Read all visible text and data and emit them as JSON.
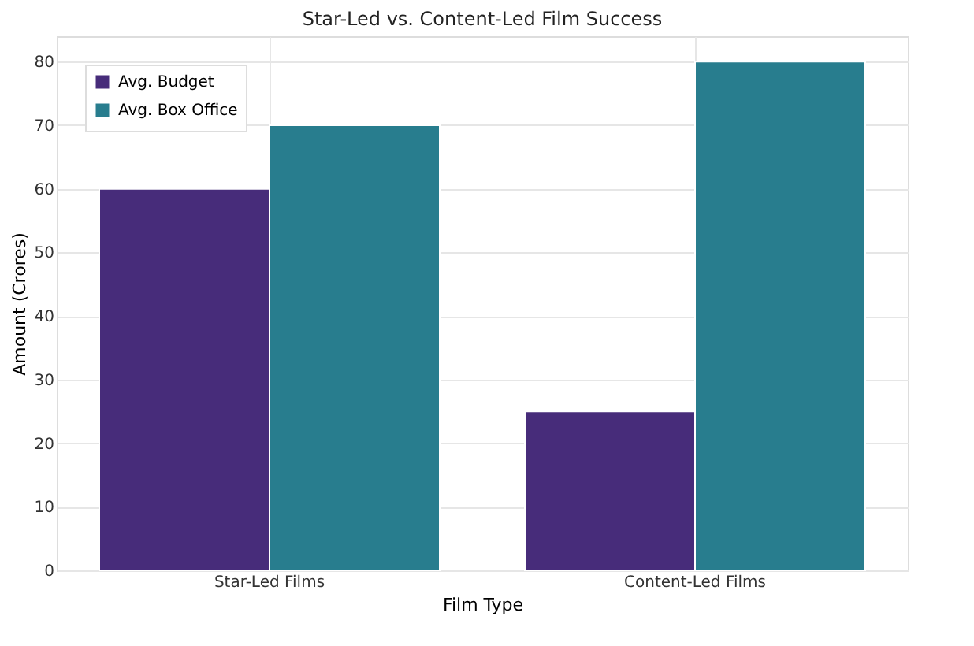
{
  "chart_data": {
    "type": "bar",
    "title": "Star-Led vs. Content-Led Film Success",
    "xlabel": "Film Type",
    "ylabel": "Amount (Crores)",
    "categories": [
      "Star-Led Films",
      "Content-Led Films"
    ],
    "series": [
      {
        "name": "Avg. Budget",
        "color": "#472c7a",
        "values": [
          60,
          25
        ]
      },
      {
        "name": "Avg. Box Office",
        "color": "#287d8e",
        "values": [
          70,
          80
        ]
      }
    ],
    "ylim": [
      0,
      84
    ],
    "yticks": [
      0,
      10,
      20,
      30,
      40,
      50,
      60,
      70,
      80
    ],
    "grid": true,
    "legend": "top left"
  }
}
